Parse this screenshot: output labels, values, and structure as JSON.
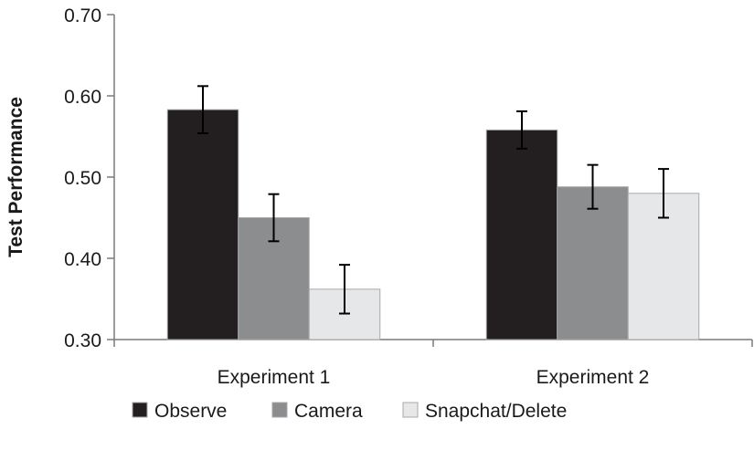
{
  "chart_data": {
    "type": "bar",
    "title": "",
    "xlabel": "",
    "ylabel": "Test Performance",
    "ylim": [
      0.3,
      0.7
    ],
    "yticks": [
      "0.30",
      "0.40",
      "0.50",
      "0.60",
      "0.70"
    ],
    "ytick_values": [
      0.3,
      0.4,
      0.5,
      0.6,
      0.7
    ],
    "categories": [
      "Experiment 1",
      "Experiment 2"
    ],
    "series": [
      {
        "name": "Observe",
        "color": "#231f20",
        "values": [
          0.583,
          0.558
        ],
        "errors": [
          0.029,
          0.023
        ]
      },
      {
        "name": "Camera",
        "color": "#8c8d8f",
        "values": [
          0.45,
          0.488
        ],
        "errors": [
          0.029,
          0.027
        ]
      },
      {
        "name": "Snapchat/Delete",
        "color": "#e6e7e8",
        "values": [
          0.362,
          0.48
        ],
        "errors": [
          0.03,
          0.03
        ]
      }
    ],
    "legend_position": "bottom",
    "grid": false
  }
}
